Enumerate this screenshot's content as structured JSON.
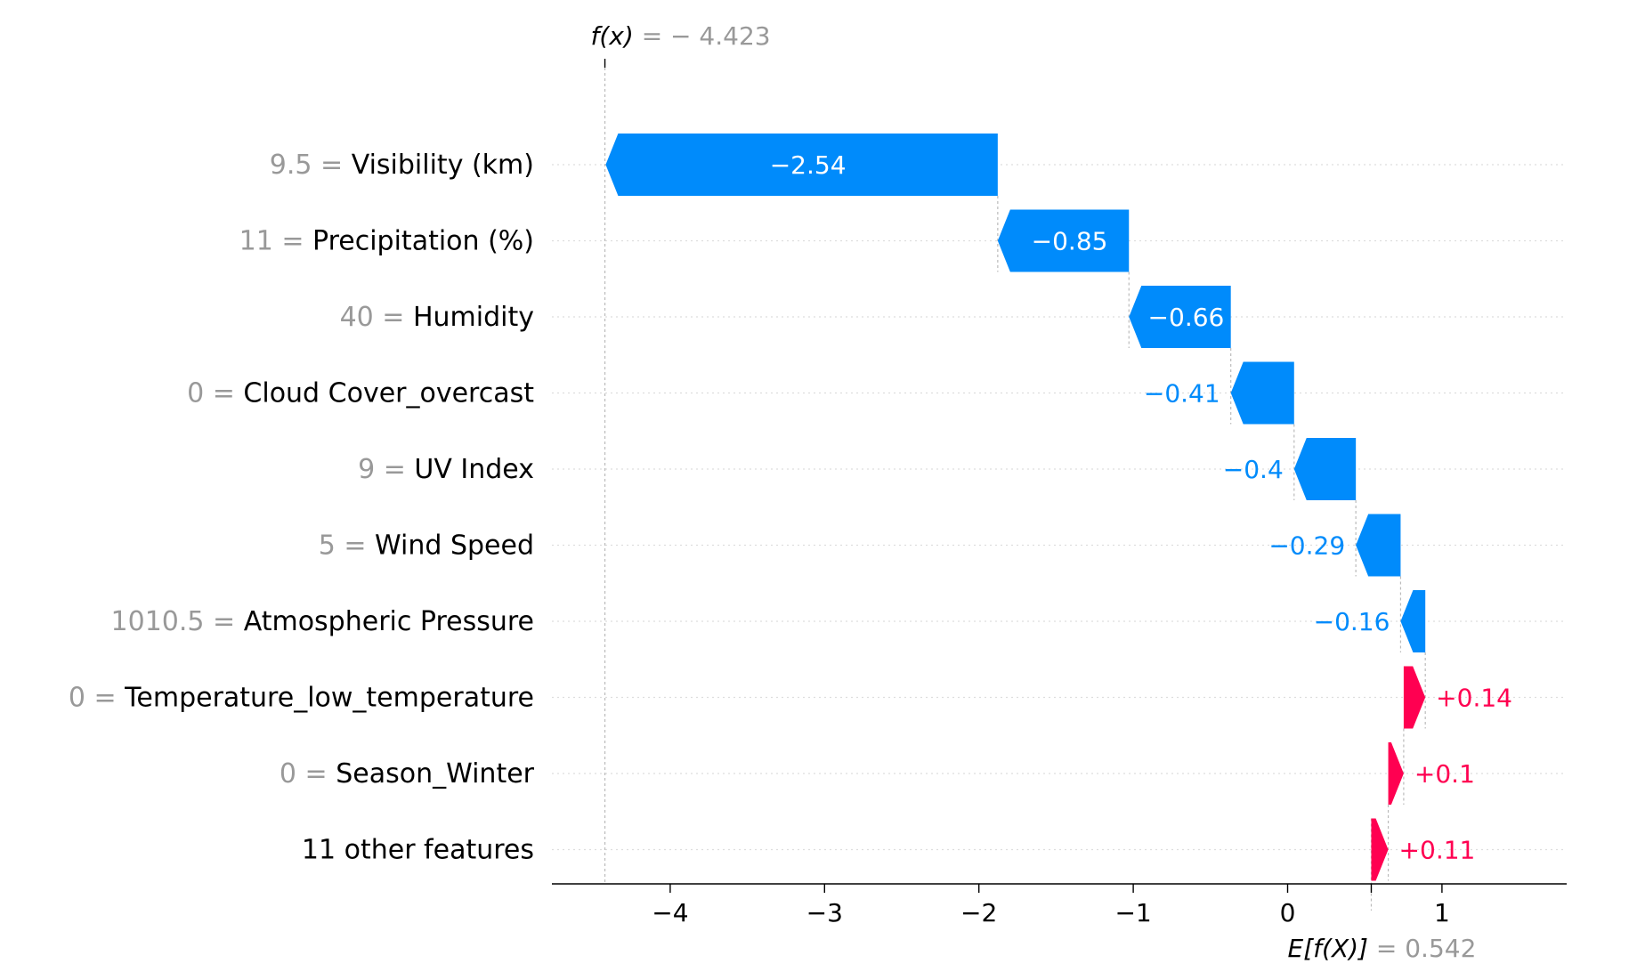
{
  "chart_data": {
    "type": "waterfall",
    "base_value": {
      "value": 0.542,
      "label_main": "E[f(X)]",
      "label_eq": "= 0.542"
    },
    "output_value": {
      "value": -4.423,
      "label_main": "f(x)",
      "label_eq": "= − 4.423"
    },
    "features": [
      {
        "value_text": "9.5",
        "name": "Visibility (km)",
        "shap": -2.54,
        "label": "−2.54"
      },
      {
        "value_text": "11",
        "name": "Precipitation (%)",
        "shap": -0.85,
        "label": "−0.85"
      },
      {
        "value_text": "40",
        "name": "Humidity",
        "shap": -0.66,
        "label": "−0.66"
      },
      {
        "value_text": "0",
        "name": "Cloud Cover_overcast",
        "shap": -0.41,
        "label": "−0.41"
      },
      {
        "value_text": "9",
        "name": "UV Index",
        "shap": -0.4,
        "label": "−0.4"
      },
      {
        "value_text": "5",
        "name": "Wind Speed",
        "shap": -0.29,
        "label": "−0.29"
      },
      {
        "value_text": "1010.5",
        "name": "Atmospheric Pressure",
        "shap": -0.16,
        "label": "−0.16"
      },
      {
        "value_text": "0",
        "name": "Temperature_low_temperature",
        "shap": 0.14,
        "label": "+0.14"
      },
      {
        "value_text": "0",
        "name": "Season_Winter",
        "shap": 0.1,
        "label": "+0.1"
      },
      {
        "value_text": "",
        "name": "11 other features",
        "shap": 0.11,
        "label": "+0.11"
      }
    ],
    "xlim": [
      -4.6,
      1.8
    ],
    "xticks": [
      -4,
      -3,
      -2,
      -1,
      0,
      1
    ],
    "xtick_labels": [
      "−4",
      "−3",
      "−2",
      "−1",
      "0",
      "1"
    ],
    "colors": {
      "negative": "#008bfb",
      "positive": "#ff0051",
      "value_text": "#999999",
      "text": "#000000",
      "grid": "#cccccc"
    }
  }
}
